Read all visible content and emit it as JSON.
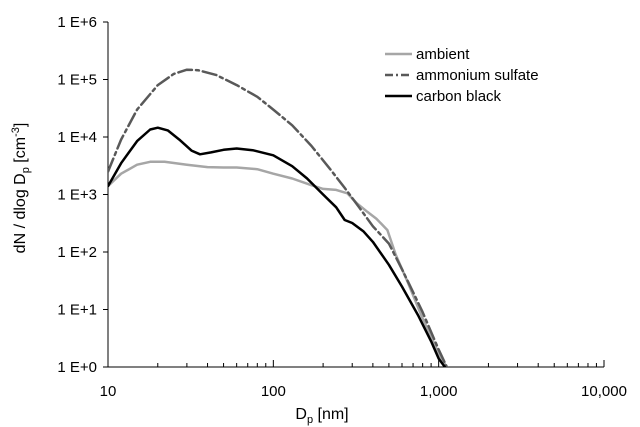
{
  "chart_data": {
    "type": "line",
    "x_scale": "log",
    "y_scale": "log",
    "xlim": [
      10,
      10000
    ],
    "ylim": [
      1,
      1000000
    ],
    "xlabel": {
      "main": "D",
      "sub": "p",
      "rest": " [nm]"
    },
    "ylabel": {
      "a": "dN / dlog D",
      "sub": "p",
      "b": " [cm",
      "sup": "-3",
      "c": "]"
    },
    "x_ticks": [
      {
        "value": 10,
        "label": "10"
      },
      {
        "value": 100,
        "label": "100"
      },
      {
        "value": 1000,
        "label": "1,000"
      },
      {
        "value": 10000,
        "label": "10,000"
      }
    ],
    "y_ticks": [
      {
        "value": 1,
        "label": "1 E+0"
      },
      {
        "value": 10,
        "label": "1 E+1"
      },
      {
        "value": 100,
        "label": "1 E+2"
      },
      {
        "value": 1000,
        "label": "1 E+3"
      },
      {
        "value": 10000,
        "label": "1 E+4"
      },
      {
        "value": 100000,
        "label": "1 E+5"
      },
      {
        "value": 1000000,
        "label": "1 E+6"
      }
    ],
    "grid": false,
    "legend_position": "top-right",
    "series": [
      {
        "name": "ambient",
        "color": "#a6a6a6",
        "dash": "solid",
        "points": [
          [
            10,
            1400
          ],
          [
            12,
            2300
          ],
          [
            15,
            3300
          ],
          [
            18,
            3700
          ],
          [
            22,
            3700
          ],
          [
            30,
            3300
          ],
          [
            40,
            3000
          ],
          [
            50,
            2950
          ],
          [
            60,
            2950
          ],
          [
            80,
            2750
          ],
          [
            100,
            2300
          ],
          [
            130,
            1900
          ],
          [
            170,
            1450
          ],
          [
            200,
            1250
          ],
          [
            240,
            1200
          ],
          [
            280,
            1050
          ],
          [
            320,
            700
          ],
          [
            370,
            500
          ],
          [
            420,
            380
          ],
          [
            490,
            240
          ],
          [
            550,
            90
          ],
          [
            650,
            30
          ],
          [
            800,
            7
          ],
          [
            1000,
            1.7
          ],
          [
            1140,
            0.9
          ]
        ]
      },
      {
        "name": "ammonium sulfate",
        "color": "#595959",
        "dash": "dashdot",
        "points": [
          [
            10,
            2500
          ],
          [
            12,
            9000
          ],
          [
            15,
            30000
          ],
          [
            20,
            80000
          ],
          [
            25,
            125000
          ],
          [
            30,
            148000
          ],
          [
            35,
            145000
          ],
          [
            45,
            120000
          ],
          [
            60,
            80000
          ],
          [
            80,
            50000
          ],
          [
            100,
            30000
          ],
          [
            130,
            16000
          ],
          [
            170,
            7000
          ],
          [
            220,
            2800
          ],
          [
            270,
            1300
          ],
          [
            330,
            600
          ],
          [
            400,
            280
          ],
          [
            500,
            140
          ],
          [
            600,
            50
          ],
          [
            700,
            20
          ],
          [
            800,
            9
          ],
          [
            1000,
            2
          ],
          [
            1140,
            0.9
          ]
        ]
      },
      {
        "name": "carbon black",
        "color": "#000000",
        "dash": "solid",
        "points": [
          [
            10,
            1400
          ],
          [
            12,
            3500
          ],
          [
            15,
            8500
          ],
          [
            18,
            13500
          ],
          [
            20,
            14500
          ],
          [
            23,
            13000
          ],
          [
            27,
            9000
          ],
          [
            32,
            5800
          ],
          [
            36,
            5000
          ],
          [
            42,
            5400
          ],
          [
            50,
            6000
          ],
          [
            60,
            6300
          ],
          [
            75,
            5900
          ],
          [
            100,
            4800
          ],
          [
            130,
            3100
          ],
          [
            160,
            1900
          ],
          [
            200,
            1000
          ],
          [
            240,
            600
          ],
          [
            270,
            360
          ],
          [
            300,
            320
          ],
          [
            350,
            230
          ],
          [
            400,
            150
          ],
          [
            500,
            60
          ],
          [
            600,
            25
          ],
          [
            750,
            8
          ],
          [
            900,
            2.8
          ],
          [
            1000,
            1.4
          ],
          [
            1120,
            0.9
          ]
        ]
      }
    ]
  }
}
